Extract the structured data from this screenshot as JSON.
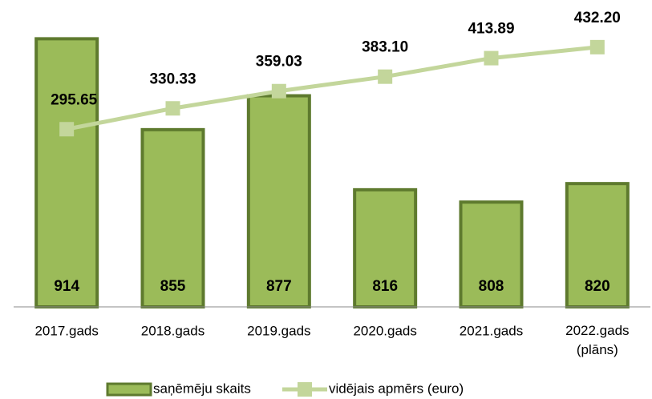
{
  "chart_data": {
    "type": "bar_line",
    "categories": [
      "2017.gads",
      "2018.gads",
      "2019.gads",
      "2020.gads",
      "2021.gads",
      "2022.gads\n(plāns)"
    ],
    "series": [
      {
        "name": "saņēmēju skaits",
        "type": "bar",
        "color": "#9bbb59",
        "edge_color": "#5e7a2e",
        "values": [
          914,
          855,
          877,
          816,
          808,
          820
        ]
      },
      {
        "name": "vidējais apmērs (euro)",
        "type": "line",
        "axis": "y2",
        "color": "#c3d69b",
        "values": [
          295.65,
          330.33,
          359.03,
          383.1,
          413.89,
          432.2
        ],
        "value_labels": [
          "295.65",
          "330.33",
          "359.03",
          "383.10",
          "413.89",
          "432.20"
        ]
      }
    ],
    "ylim": [
      740,
      935
    ],
    "y2lim": [
      0,
      500
    ],
    "legend": "bottom"
  }
}
